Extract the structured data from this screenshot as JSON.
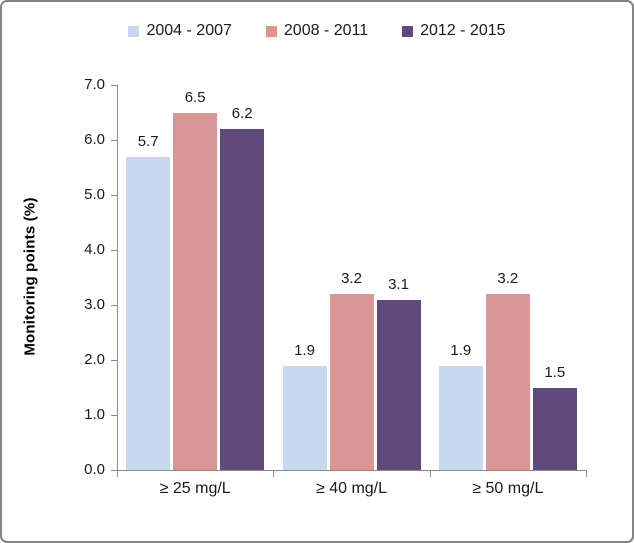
{
  "chart_data": {
    "type": "bar",
    "title": "",
    "categories": [
      "≥ 25 mg/L",
      "≥ 40 mg/L",
      "≥ 50 mg/L"
    ],
    "series": [
      {
        "name": "2004 - 2007",
        "color": "#C6D9F1",
        "values": [
          5.7,
          1.9,
          1.9
        ]
      },
      {
        "name": "2008 - 2011",
        "color": "#D99694",
        "values": [
          6.5,
          3.2,
          3.2
        ]
      },
      {
        "name": "2012 - 2015",
        "color": "#604A7B",
        "values": [
          6.2,
          3.1,
          1.5
        ]
      }
    ],
    "xlabel": "",
    "ylabel": "Monitoring points (%)",
    "ylim": [
      0,
      7
    ],
    "ytick_step": 1,
    "ytick_labels": [
      "0.0",
      "1.0",
      "2.0",
      "3.0",
      "4.0",
      "5.0",
      "6.0",
      "7.0"
    ],
    "grid": false,
    "legend_position": "top",
    "data_labels_shown": true
  },
  "style": {
    "axis_color": "#8c8c8c",
    "frame_border_color": "#838383",
    "text_color": "#1a1a1a",
    "background": "#ffffff"
  }
}
